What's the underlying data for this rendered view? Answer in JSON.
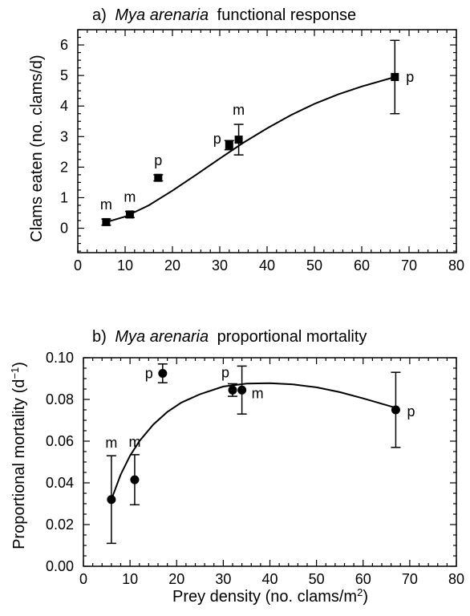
{
  "chart_data": [
    {
      "type": "scatter",
      "panel_label": "a)",
      "title_species": "Mya arenaria",
      "title_rest": "functional response",
      "ylabel": "Clams eaten (no. clams/d)",
      "xlabel": "",
      "xlim": [
        0,
        80
      ],
      "ylim": [
        -0.8,
        6.5
      ],
      "x_ticks": [
        0,
        10,
        20,
        30,
        40,
        50,
        60,
        70,
        80
      ],
      "y_ticks": [
        0,
        1,
        2,
        3,
        4,
        5,
        6
      ],
      "marker": "square",
      "points": [
        {
          "x": 6,
          "y": 0.2,
          "err": 0.1,
          "label": "m"
        },
        {
          "x": 11,
          "y": 0.45,
          "err": 0.1,
          "label": "m"
        },
        {
          "x": 17,
          "y": 1.65,
          "err": 0.1,
          "label": "p"
        },
        {
          "x": 32,
          "y": 2.72,
          "err": 0.15,
          "label": "p"
        },
        {
          "x": 34,
          "y": 2.9,
          "err": 0.5,
          "label": "m"
        },
        {
          "x": 67,
          "y": 4.95,
          "err": 1.2,
          "label": "p"
        }
      ],
      "fit_curve": [
        [
          6,
          0.2
        ],
        [
          10,
          0.38
        ],
        [
          15,
          0.75
        ],
        [
          20,
          1.23
        ],
        [
          25,
          1.75
        ],
        [
          30,
          2.28
        ],
        [
          35,
          2.8
        ],
        [
          40,
          3.27
        ],
        [
          45,
          3.7
        ],
        [
          50,
          4.07
        ],
        [
          55,
          4.38
        ],
        [
          60,
          4.64
        ],
        [
          67,
          4.95
        ]
      ]
    },
    {
      "type": "scatter",
      "panel_label": "b)",
      "title_species": "Mya arenaria",
      "title_rest": "proportional mortality",
      "ylabel": "Proportional mortality (d",
      "ylabel_sup": "−1",
      "ylabel_end": ")",
      "xlabel": "Prey density (no. clams/m",
      "xlabel_sup": "2",
      "xlabel_end": ")",
      "xlim": [
        0,
        80
      ],
      "ylim": [
        0,
        0.1
      ],
      "x_ticks": [
        0,
        10,
        20,
        30,
        40,
        50,
        60,
        70,
        80
      ],
      "y_ticks": [
        0.0,
        0.02,
        0.04,
        0.06,
        0.08,
        0.1
      ],
      "y_tick_labels": [
        "0.00",
        "0.02",
        "0.04",
        "0.06",
        "0.08",
        "0.10"
      ],
      "marker": "circle",
      "points": [
        {
          "x": 6,
          "y": 0.032,
          "err": 0.021,
          "label": "m"
        },
        {
          "x": 11,
          "y": 0.0415,
          "err": 0.012,
          "label": "m"
        },
        {
          "x": 17,
          "y": 0.0925,
          "err": 0.0045,
          "label": "p"
        },
        {
          "x": 32,
          "y": 0.0845,
          "err": 0.003,
          "label": "p"
        },
        {
          "x": 34,
          "y": 0.0845,
          "err": 0.0115,
          "label": "m"
        },
        {
          "x": 67,
          "y": 0.075,
          "err": 0.018,
          "label": "p"
        }
      ],
      "fit_curve": [
        [
          6,
          0.032
        ],
        [
          8,
          0.044
        ],
        [
          10,
          0.053
        ],
        [
          12,
          0.06
        ],
        [
          15,
          0.068
        ],
        [
          18,
          0.074
        ],
        [
          21,
          0.0785
        ],
        [
          25,
          0.0825
        ],
        [
          30,
          0.0862
        ],
        [
          35,
          0.0876
        ],
        [
          40,
          0.0878
        ],
        [
          45,
          0.0872
        ],
        [
          50,
          0.0858
        ],
        [
          55,
          0.0835
        ],
        [
          60,
          0.0805
        ],
        [
          67,
          0.076
        ]
      ]
    }
  ]
}
